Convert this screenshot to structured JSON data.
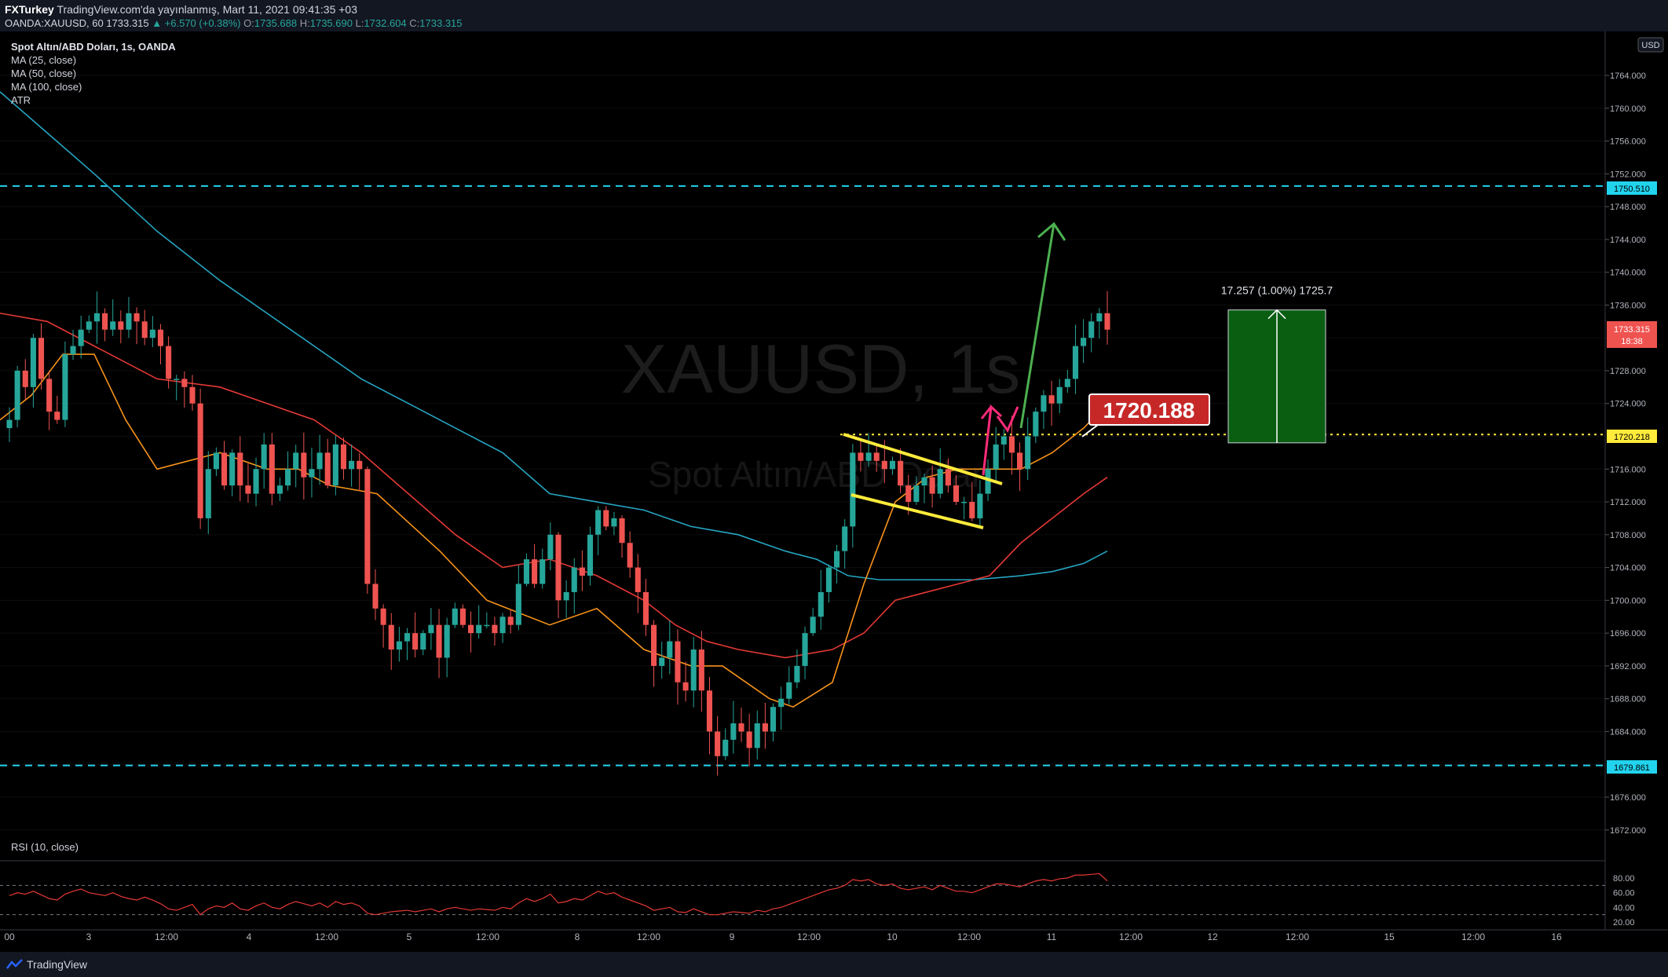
{
  "header": {
    "publisher": "FXTurkey",
    "published_text": "TradingView.com'da yayınlanmış, Mart 11, 2021 09:41:35 +03",
    "symbol_line": "OANDA:XAUUSD, 60",
    "last_price": "1733.315",
    "change": "▲ +6.570 (+0.38%)",
    "o_label": "O:",
    "o_value": "1735.688",
    "h_label": "H:",
    "h_value": "1735.690",
    "l_label": "L:",
    "l_value": "1732.604",
    "c_label": "C:",
    "c_value": "1733.315"
  },
  "legend": {
    "title": "Spot Altın/ABD Doları, 1s, OANDA",
    "ma25": "MA (25, close)",
    "ma50": "MA (50, close)",
    "ma100": "MA (100, close)",
    "atr": "ATR",
    "rsi": "RSI (10, close)"
  },
  "watermark": {
    "symbol": "XAUUSD, 1s",
    "name": "Spot Altın/ABD Doları"
  },
  "footer": {
    "brand": "TradingView"
  },
  "colors": {
    "bull": "#26a69a",
    "bear": "#ef5350",
    "ma25": "#f7931a",
    "ma50": "#e53935",
    "ma100": "#26a5c2",
    "hline": "#22d3ee",
    "resistance": "#ffeb3b",
    "flag": "#ffeb3b",
    "arrow_up": "#4caf50",
    "arrow_break": "#ff2b7a",
    "target_box": "#0a5e12",
    "label_red": "#c62828",
    "rsi": "#e53935"
  },
  "chart_data": {
    "type": "candlestick",
    "symbol": "XAUUSD",
    "timeframe": "1s",
    "currency": "USD",
    "y_axis_ticks": [
      "1764.000",
      "1760.000",
      "1756.000",
      "1752.000",
      "1748.000",
      "1744.000",
      "1740.000",
      "1736.000",
      "1728.000",
      "1724.000",
      "1716.000",
      "1712.000",
      "1708.000",
      "1704.000",
      "1700.000",
      "1696.000",
      "1692.000",
      "1688.000",
      "1684.000",
      "1676.000",
      "1672.000"
    ],
    "y_range": [
      1671,
      1768
    ],
    "x_axis_labels": [
      "00",
      "3",
      "12:00",
      "4",
      "12:00",
      "5",
      "12:00",
      "8",
      "12:00",
      "9",
      "12:00",
      "10",
      "12:00",
      "11",
      "12:00",
      "12",
      "12:00",
      "15",
      "12:00",
      "16"
    ],
    "price_labels": {
      "top_line": "1750.510",
      "last": "1733.315",
      "countdown": "18:38",
      "resistance": "1720.218",
      "bottom_line": "1679.861"
    },
    "horizontal_lines": [
      1750.51,
      1679.861
    ],
    "resistance_level": 1720.218,
    "annotation_label": "1720.188",
    "target_text": "17.257 (1.00%) 1725.7",
    "target_box": {
      "from": 1719.2,
      "to": 1735.4
    },
    "close_path": [
      1722,
      1728,
      1726,
      1732,
      1727,
      1723,
      1722,
      1730,
      1731,
      1733,
      1734,
      1735,
      1733,
      1734,
      1733,
      1735,
      1734,
      1732,
      1733,
      1731,
      1727,
      1727,
      1726,
      1724,
      1710,
      1716,
      1718,
      1714,
      1718,
      1714,
      1713,
      1716,
      1719,
      1713,
      1714,
      1716,
      1718,
      1715,
      1716,
      1718,
      1714,
      1719,
      1716,
      1717,
      1716,
      1702,
      1699,
      1697,
      1694,
      1695,
      1696,
      1694,
      1696,
      1697,
      1693,
      1697,
      1699,
      1697,
      1696,
      1697,
      1697,
      1696,
      1698,
      1697,
      1702,
      1705,
      1702,
      1705,
      1708,
      1700,
      1701,
      1704,
      1703,
      1708,
      1711,
      1709,
      1710,
      1707,
      1704,
      1701,
      1697,
      1692,
      1693,
      1695,
      1690,
      1689,
      1694,
      1689,
      1684,
      1681,
      1683,
      1685,
      1684,
      1682,
      1685,
      1684,
      1687,
      1688,
      1690,
      1692,
      1696,
      1698,
      1701,
      1704,
      1706,
      1709,
      1718,
      1717,
      1718,
      1717,
      1716,
      1717,
      1714,
      1712,
      1714,
      1715,
      1713,
      1716,
      1714,
      1712,
      1712,
      1710,
      1713,
      1716,
      1719,
      1720,
      1718,
      1716,
      1720,
      1723,
      1725,
      1724,
      1726,
      1727,
      1731,
      1732,
      1734,
      1735,
      1733
    ],
    "ma25": [
      [
        0,
        1722
      ],
      [
        40,
        1725
      ],
      [
        80,
        1730
      ],
      [
        120,
        1730
      ],
      [
        160,
        1722
      ],
      [
        200,
        1716
      ],
      [
        240,
        1717
      ],
      [
        280,
        1718
      ],
      [
        340,
        1716
      ],
      [
        380,
        1716
      ],
      [
        420,
        1714
      ],
      [
        480,
        1713
      ],
      [
        560,
        1706
      ],
      [
        620,
        1700
      ],
      [
        700,
        1697
      ],
      [
        760,
        1699
      ],
      [
        820,
        1694
      ],
      [
        880,
        1692
      ],
      [
        920,
        1692
      ],
      [
        980,
        1688
      ],
      [
        1010,
        1687
      ],
      [
        1060,
        1690
      ],
      [
        1100,
        1702
      ],
      [
        1140,
        1712
      ],
      [
        1180,
        1715
      ],
      [
        1220,
        1716
      ],
      [
        1260,
        1716
      ],
      [
        1300,
        1716
      ],
      [
        1340,
        1718
      ],
      [
        1380,
        1721
      ],
      [
        1410,
        1724
      ]
    ],
    "ma50": [
      [
        0,
        1735
      ],
      [
        60,
        1734
      ],
      [
        120,
        1731
      ],
      [
        200,
        1727
      ],
      [
        280,
        1726
      ],
      [
        340,
        1724
      ],
      [
        400,
        1722
      ],
      [
        460,
        1718
      ],
      [
        520,
        1713
      ],
      [
        580,
        1708
      ],
      [
        640,
        1704
      ],
      [
        700,
        1705
      ],
      [
        760,
        1703
      ],
      [
        820,
        1700
      ],
      [
        860,
        1697
      ],
      [
        900,
        1695
      ],
      [
        940,
        1694
      ],
      [
        1000,
        1693
      ],
      [
        1060,
        1694
      ],
      [
        1100,
        1696
      ],
      [
        1140,
        1700
      ],
      [
        1180,
        1701
      ],
      [
        1220,
        1702
      ],
      [
        1260,
        1703
      ],
      [
        1300,
        1707
      ],
      [
        1340,
        1710
      ],
      [
        1380,
        1713
      ],
      [
        1410,
        1715
      ]
    ],
    "ma100": [
      [
        0,
        1762
      ],
      [
        60,
        1757
      ],
      [
        120,
        1752
      ],
      [
        200,
        1745
      ],
      [
        280,
        1739
      ],
      [
        340,
        1735
      ],
      [
        400,
        1731
      ],
      [
        460,
        1727
      ],
      [
        520,
        1724
      ],
      [
        580,
        1721
      ],
      [
        640,
        1718
      ],
      [
        700,
        1713
      ],
      [
        760,
        1712
      ],
      [
        820,
        1711
      ],
      [
        880,
        1709
      ],
      [
        940,
        1708
      ],
      [
        1000,
        1706
      ],
      [
        1040,
        1705
      ],
      [
        1080,
        1703
      ],
      [
        1120,
        1702.5
      ],
      [
        1180,
        1702.5
      ],
      [
        1240,
        1702.5
      ],
      [
        1300,
        1703
      ],
      [
        1340,
        1703.5
      ],
      [
        1380,
        1704.5
      ],
      [
        1410,
        1706
      ]
    ],
    "rsi": [
      56,
      60,
      58,
      62,
      57,
      52,
      50,
      58,
      62,
      65,
      60,
      58,
      56,
      60,
      55,
      52,
      50,
      54,
      50,
      45,
      38,
      36,
      40,
      44,
      30,
      38,
      42,
      40,
      46,
      38,
      36,
      42,
      46,
      40,
      38,
      44,
      48,
      45,
      42,
      46,
      40,
      48,
      44,
      46,
      42,
      32,
      30,
      32,
      34,
      35,
      36,
      34,
      36,
      38,
      34,
      38,
      40,
      38,
      36,
      38,
      37,
      36,
      40,
      38,
      46,
      52,
      48,
      52,
      58,
      46,
      48,
      52,
      50,
      56,
      62,
      58,
      60,
      54,
      50,
      46,
      42,
      36,
      38,
      40,
      34,
      33,
      38,
      34,
      30,
      30,
      32,
      34,
      33,
      32,
      36,
      34,
      38,
      40,
      44,
      48,
      52,
      56,
      60,
      64,
      66,
      70,
      78,
      76,
      78,
      72,
      70,
      72,
      66,
      64,
      66,
      68,
      64,
      70,
      66,
      62,
      62,
      60,
      64,
      68,
      72,
      72,
      70,
      68,
      72,
      76,
      78,
      76,
      79,
      80,
      84,
      84,
      85,
      86,
      76
    ],
    "rsi_range": [
      20,
      88
    ],
    "rsi_levels": [
      70,
      30
    ],
    "rsi_ticks": [
      "80.00",
      "60.00",
      "40.00",
      "20.00"
    ]
  }
}
